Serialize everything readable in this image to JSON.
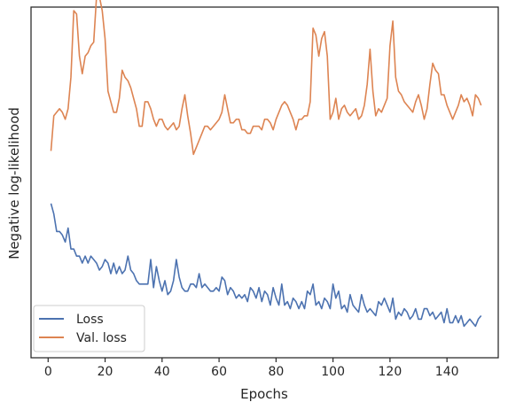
{
  "chart_data": {
    "type": "line",
    "xlabel": "Epochs",
    "ylabel": "Negative log-likelihood",
    "xlim": [
      -6,
      158
    ],
    "ylim": [
      0,
      100
    ],
    "xticks": [
      0,
      20,
      40,
      60,
      80,
      100,
      120,
      140
    ],
    "yticks_labeled": false,
    "grid": false,
    "legend_position": "lower-left",
    "series": [
      {
        "name": "Loss",
        "color": "#4c72b0",
        "x": [
          1,
          2,
          3,
          4,
          5,
          6,
          7,
          8,
          9,
          10,
          11,
          12,
          13,
          14,
          15,
          16,
          17,
          18,
          19,
          20,
          21,
          22,
          23,
          24,
          25,
          26,
          27,
          28,
          29,
          30,
          31,
          32,
          33,
          34,
          35,
          36,
          37,
          38,
          39,
          40,
          41,
          42,
          43,
          44,
          45,
          46,
          47,
          48,
          49,
          50,
          51,
          52,
          53,
          54,
          55,
          56,
          57,
          58,
          59,
          60,
          61,
          62,
          63,
          64,
          65,
          66,
          67,
          68,
          69,
          70,
          71,
          72,
          73,
          74,
          75,
          76,
          77,
          78,
          79,
          80,
          81,
          82,
          83,
          84,
          85,
          86,
          87,
          88,
          89,
          90,
          91,
          92,
          93,
          94,
          95,
          96,
          97,
          98,
          99,
          100,
          101,
          102,
          103,
          104,
          105,
          106,
          107,
          108,
          109,
          110,
          111,
          112,
          113,
          114,
          115,
          116,
          117,
          118,
          119,
          120,
          121,
          122,
          123,
          124,
          125,
          126,
          127,
          128,
          129,
          130,
          131,
          132,
          133,
          134,
          135,
          136,
          137,
          138,
          139,
          140,
          141,
          142,
          143,
          144,
          145,
          146,
          147,
          148,
          149,
          150,
          151,
          152
        ],
        "values": [
          44,
          41,
          36,
          36,
          35,
          33,
          37,
          31,
          31,
          29,
          29,
          27,
          29,
          27,
          29,
          28,
          27,
          25,
          26,
          28,
          27,
          24,
          27,
          24,
          26,
          24,
          25,
          29,
          25,
          24,
          22,
          21,
          21,
          21,
          21,
          28,
          20,
          26,
          22,
          19,
          22,
          18,
          19,
          22,
          28,
          23,
          20,
          19,
          19,
          21,
          21,
          20,
          24,
          20,
          21,
          20,
          19,
          19,
          20,
          19,
          23,
          22,
          18,
          20,
          19,
          17,
          18,
          17,
          18,
          16,
          20,
          19,
          17,
          20,
          16,
          19,
          18,
          15,
          20,
          17,
          15,
          21,
          15,
          16,
          14,
          17,
          16,
          14,
          16,
          14,
          19,
          18,
          21,
          15,
          16,
          14,
          17,
          16,
          14,
          21,
          17,
          19,
          14,
          15,
          13,
          18,
          15,
          14,
          13,
          18,
          15,
          13,
          14,
          13,
          12,
          16,
          15,
          17,
          15,
          13,
          17,
          11,
          13,
          12,
          14,
          13,
          11,
          12,
          14,
          11,
          11,
          14,
          14,
          12,
          13,
          11,
          12,
          13,
          10,
          14,
          10,
          10,
          12,
          10,
          12,
          9,
          10,
          11,
          10,
          9,
          11,
          12
        ]
      },
      {
        "name": "Val. loss",
        "color": "#dd8452",
        "x": [
          1,
          2,
          3,
          4,
          5,
          6,
          7,
          8,
          9,
          10,
          11,
          12,
          13,
          14,
          15,
          16,
          17,
          18,
          19,
          20,
          21,
          22,
          23,
          24,
          25,
          26,
          27,
          28,
          29,
          30,
          31,
          32,
          33,
          34,
          35,
          36,
          37,
          38,
          39,
          40,
          41,
          42,
          43,
          44,
          45,
          46,
          47,
          48,
          49,
          50,
          51,
          52,
          53,
          54,
          55,
          56,
          57,
          58,
          59,
          60,
          61,
          62,
          63,
          64,
          65,
          66,
          67,
          68,
          69,
          70,
          71,
          72,
          73,
          74,
          75,
          76,
          77,
          78,
          79,
          80,
          81,
          82,
          83,
          84,
          85,
          86,
          87,
          88,
          89,
          90,
          91,
          92,
          93,
          94,
          95,
          96,
          97,
          98,
          99,
          100,
          101,
          102,
          103,
          104,
          105,
          106,
          107,
          108,
          109,
          110,
          111,
          112,
          113,
          114,
          115,
          116,
          117,
          118,
          119,
          120,
          121,
          122,
          123,
          124,
          125,
          126,
          127,
          128,
          129,
          130,
          131,
          132,
          133,
          134,
          135,
          136,
          137,
          138,
          139,
          140,
          141,
          142,
          143,
          144,
          145,
          146,
          147,
          148,
          149,
          150,
          151,
          152
        ],
        "values": [
          59,
          69,
          70,
          71,
          70,
          68,
          71,
          80,
          99,
          98,
          86,
          81,
          86,
          87,
          89,
          90,
          103,
          103,
          99,
          91,
          76,
          73,
          70,
          70,
          74,
          82,
          80,
          79,
          77,
          74,
          71,
          66,
          66,
          73,
          73,
          71,
          68,
          66,
          68,
          68,
          66,
          65,
          66,
          67,
          65,
          66,
          71,
          75,
          69,
          64,
          58,
          60,
          62,
          64,
          66,
          66,
          65,
          66,
          67,
          68,
          70,
          75,
          71,
          67,
          67,
          68,
          68,
          65,
          65,
          64,
          64,
          66,
          66,
          66,
          65,
          68,
          68,
          67,
          65,
          68,
          70,
          72,
          73,
          72,
          70,
          68,
          65,
          68,
          68,
          69,
          69,
          73,
          94,
          92,
          86,
          91,
          93,
          86,
          68,
          70,
          74,
          68,
          71,
          72,
          70,
          69,
          70,
          71,
          68,
          69,
          72,
          78,
          88,
          76,
          69,
          71,
          70,
          72,
          74,
          89,
          96,
          80,
          76,
          75,
          73,
          72,
          71,
          70,
          73,
          75,
          72,
          68,
          71,
          78,
          84,
          82,
          81,
          75,
          75,
          72,
          70,
          68,
          70,
          72,
          75,
          73,
          74,
          72,
          69,
          75,
          74,
          72
        ]
      }
    ]
  }
}
